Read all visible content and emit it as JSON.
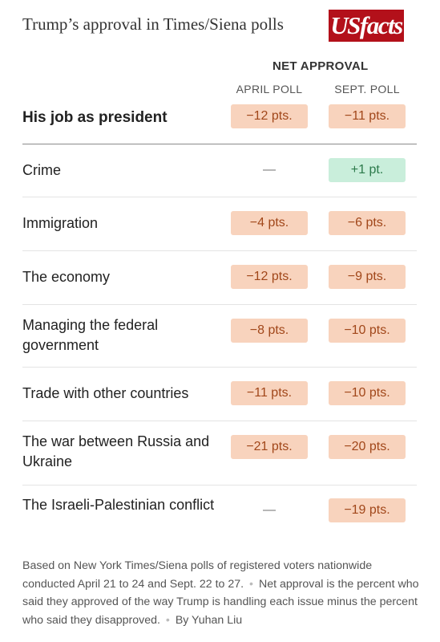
{
  "header": {
    "title": "Trump’s approval in Times/Siena polls",
    "logo_text": "USfacts"
  },
  "table": {
    "group_heading": "NET APPROVAL",
    "columns": [
      "APRIL POLL",
      "SEPT. POLL"
    ],
    "rows": [
      {
        "label": "His job as president",
        "april": "−12 pts.",
        "sept": "−11 pts."
      },
      {
        "label": "Crime",
        "april": "—",
        "sept": "+1 pt."
      },
      {
        "label": "Immigration",
        "april": "−4 pts.",
        "sept": "−6 pts."
      },
      {
        "label": "The economy",
        "april": "−12 pts.",
        "sept": "−9 pts."
      },
      {
        "label": "Managing the federal government",
        "april": "−8 pts.",
        "sept": "−10 pts."
      },
      {
        "label": "Trade with other countries",
        "april": "−11 pts.",
        "sept": "−10 pts."
      },
      {
        "label": "The war between Russia and Ukraine",
        "april": "−21 pts.",
        "sept": "−20 pts."
      },
      {
        "label": "The Israeli-Palestinian conflict",
        "april": "—",
        "sept": "−19 pts."
      }
    ]
  },
  "footnote": {
    "part1": "Based on New York Times/Siena polls of registered voters nationwide conducted April 21 to 24 and Sept. 22 to 27.",
    "part2": "Net approval is the percent who said they approved of the way Trump is handling each issue minus the percent who said they disapproved.",
    "part3": "By Yuhan Liu",
    "separator": "•"
  },
  "colors": {
    "negative_fill": "#f8d3bd",
    "negative_text": "#a1471a",
    "positive_fill": "#c9eedb",
    "positive_text": "#2c7a4b",
    "logo_bg": "#b3101a"
  },
  "chart_data": {
    "type": "table",
    "title": "Trump’s approval in Times/Siena polls",
    "columns": [
      "APRIL POLL",
      "SEPT. POLL"
    ],
    "categories": [
      "His job as president",
      "Crime",
      "Immigration",
      "The economy",
      "Managing the federal government",
      "Trade with other countries",
      "The war between Russia and Ukraine",
      "The Israeli-Palestinian conflict"
    ],
    "series": [
      {
        "name": "APRIL POLL",
        "values": [
          -12,
          null,
          -4,
          -12,
          -8,
          -11,
          -21,
          null
        ]
      },
      {
        "name": "SEPT. POLL",
        "values": [
          -11,
          1,
          -6,
          -9,
          -10,
          -10,
          -20,
          -19
        ]
      }
    ]
  }
}
